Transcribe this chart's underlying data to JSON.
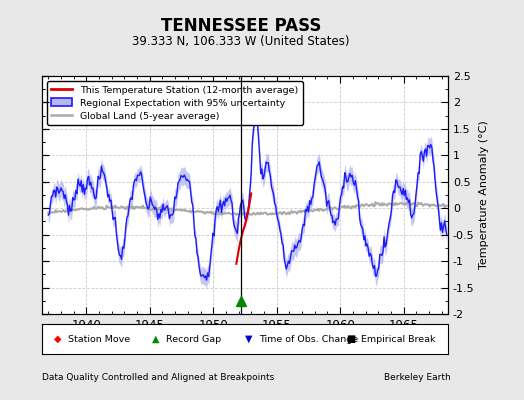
{
  "title": "TENNESSEE PASS",
  "subtitle": "39.333 N, 106.333 W (United States)",
  "xlabel_left": "Data Quality Controlled and Aligned at Breakpoints",
  "xlabel_right": "Berkeley Earth",
  "ylabel": "Temperature Anomaly (°C)",
  "xlim": [
    1936.5,
    1968.5
  ],
  "ylim": [
    -2.0,
    2.5
  ],
  "yticks": [
    -2.0,
    -1.5,
    -1.0,
    -0.5,
    0.0,
    0.5,
    1.0,
    1.5,
    2.0,
    2.5
  ],
  "xticks": [
    1940,
    1945,
    1950,
    1955,
    1960,
    1965
  ],
  "fig_bg_color": "#e8e8e8",
  "plot_bg_color": "#ffffff",
  "regional_color": "#1a1aff",
  "regional_fill_color": "#b8b8f0",
  "station_color": "#dd0000",
  "global_color": "#aaaaaa",
  "grid_color": "#cccccc",
  "vline_x": 1952.2,
  "green_marker_x": 1952.2,
  "green_marker_y": -1.75,
  "red_start_year": 1951.75,
  "red_end_year": 1953.0
}
